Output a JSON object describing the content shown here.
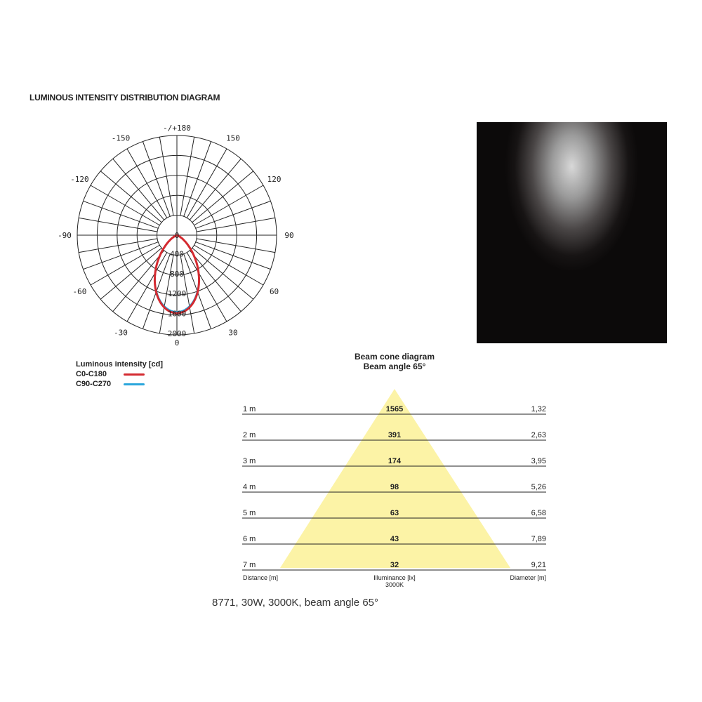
{
  "title": "LUMINOUS INTENSITY DISTRIBUTION DIAGRAM",
  "legend": {
    "title": "Luminous intensity [cd]",
    "items": [
      {
        "label": "C0-C180",
        "color": "#d42a30"
      },
      {
        "label": "C90-C270",
        "color": "#2aa6dc"
      }
    ]
  },
  "caption": "8771, 30W, 3000K, beam angle 65°",
  "beam": {
    "title": "Beam cone diagram",
    "subtitle": "Beam angle 65°",
    "cone_color": "#fcf3a6",
    "rows": [
      {
        "d": "1 m",
        "lx": "1565",
        "dia": "1,32"
      },
      {
        "d": "2 m",
        "lx": "391",
        "dia": "2,63"
      },
      {
        "d": "3 m",
        "lx": "174",
        "dia": "3,95"
      },
      {
        "d": "4 m",
        "lx": "98",
        "dia": "5,26"
      },
      {
        "d": "5 m",
        "lx": "63",
        "dia": "6,58"
      },
      {
        "d": "6 m",
        "lx": "43",
        "dia": "7,89"
      },
      {
        "d": "7 m",
        "lx": "32",
        "dia": "9,21"
      }
    ],
    "col_distance": "Distance [m]",
    "col_illuminance": "Illuminance [lx]",
    "col_illuminance_sub": "3000K",
    "col_diameter": "Diameter [m]"
  },
  "chart_data": {
    "type": "polar",
    "max": 2000,
    "ring_labels": [
      "0",
      "400",
      "800",
      "1200",
      "1600",
      "2000"
    ],
    "angle_labels": [
      {
        "a": 180,
        "t": "-/+180"
      },
      {
        "a": 150,
        "t": "150"
      },
      {
        "a": -150,
        "t": "-150"
      },
      {
        "a": 120,
        "t": "120"
      },
      {
        "a": -120,
        "t": "-120"
      },
      {
        "a": 90,
        "t": "90"
      },
      {
        "a": -90,
        "t": "-90"
      },
      {
        "a": 60,
        "t": "60"
      },
      {
        "a": -60,
        "t": "-60"
      },
      {
        "a": 30,
        "t": "30"
      },
      {
        "a": -30,
        "t": "-30"
      },
      {
        "a": 0,
        "t": "0"
      }
    ],
    "series": [
      {
        "name": "C0-C180",
        "peak_cd": 1565,
        "beam_angle": 65
      },
      {
        "name": "C90-C270",
        "peak_cd": 1565,
        "beam_angle": 65
      }
    ]
  }
}
